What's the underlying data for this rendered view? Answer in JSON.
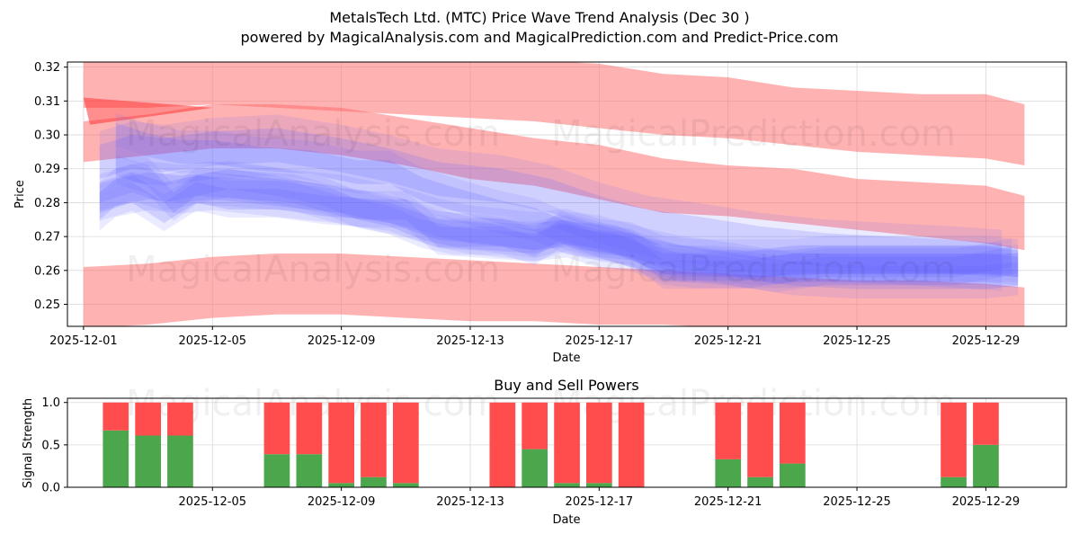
{
  "chart_data": [
    {
      "type": "area",
      "title": "MetalsTech Ltd. (MTC) Price Wave Trend Analysis (Dec 30 )",
      "subtitle": "powered by MagicalAnalysis.com and MagicalPrediction.com and Predict-Price.com",
      "xlabel": "Date",
      "ylabel": "Price",
      "ylim": [
        0.2435,
        0.3215
      ],
      "xlim": [
        "2025-11-30.5",
        "2025-12-31.5"
      ],
      "xtick_labels": [
        "2025-12-01",
        "2025-12-05",
        "2025-12-09",
        "2025-12-13",
        "2025-12-17",
        "2025-12-21",
        "2025-12-25",
        "2025-12-29"
      ],
      "ytick_labels": [
        "0.25",
        "0.26",
        "0.27",
        "0.28",
        "0.29",
        "0.30",
        "0.31",
        "0.32"
      ],
      "grid": true,
      "red_bands": [
        {
          "name": "upper band 1",
          "x": [
            1,
            3,
            5,
            7,
            9,
            11,
            13,
            15,
            17,
            19,
            21,
            23,
            25,
            27,
            29,
            30.2
          ],
          "lower": [
            0.308,
            0.308,
            0.309,
            0.308,
            0.307,
            0.306,
            0.305,
            0.304,
            0.302,
            0.3,
            0.299,
            0.297,
            0.295,
            0.294,
            0.293,
            0.291
          ],
          "upper": [
            0.322,
            0.322,
            0.323,
            0.324,
            0.324,
            0.323,
            0.322,
            0.322,
            0.321,
            0.318,
            0.317,
            0.314,
            0.313,
            0.312,
            0.312,
            0.309
          ]
        },
        {
          "name": "upper band 2",
          "x": [
            1,
            3,
            5,
            7,
            9,
            11,
            13,
            15,
            17,
            19,
            21,
            23,
            25,
            27,
            29,
            30.2
          ],
          "lower": [
            0.292,
            0.294,
            0.296,
            0.296,
            0.294,
            0.291,
            0.287,
            0.285,
            0.281,
            0.277,
            0.276,
            0.274,
            0.272,
            0.27,
            0.268,
            0.266
          ],
          "upper": [
            0.304,
            0.306,
            0.309,
            0.309,
            0.308,
            0.305,
            0.302,
            0.299,
            0.297,
            0.293,
            0.291,
            0.29,
            0.287,
            0.286,
            0.285,
            0.282
          ]
        },
        {
          "name": "lower band",
          "x": [
            1,
            3,
            5,
            7,
            9,
            11,
            13,
            15,
            17,
            19,
            21,
            23,
            25,
            27,
            29,
            30.2
          ],
          "lower": [
            0.243,
            0.244,
            0.246,
            0.247,
            0.247,
            0.246,
            0.245,
            0.245,
            0.244,
            0.244,
            0.243,
            0.243,
            0.243,
            0.243,
            0.243,
            0.243
          ],
          "upper": [
            0.261,
            0.262,
            0.264,
            0.265,
            0.265,
            0.264,
            0.263,
            0.262,
            0.261,
            0.26,
            0.259,
            0.258,
            0.257,
            0.257,
            0.256,
            0.255
          ]
        }
      ],
      "red_wedge": {
        "x": [
          1,
          1.2,
          5
        ],
        "y_top": [
          0.311,
          0.311,
          0.308
        ],
        "y_bottom": [
          0.311,
          0.303,
          0.308
        ]
      },
      "wave_bands": [
        {
          "x": [
            1.5,
            2.5,
            3.5,
            5,
            7,
            9,
            10.5,
            12,
            14,
            15.5,
            17,
            18.5,
            20,
            22,
            24,
            26,
            28,
            29.5
          ],
          "center": [
            0.292,
            0.295,
            0.294,
            0.296,
            0.297,
            0.294,
            0.291,
            0.287,
            0.285,
            0.282,
            0.277,
            0.273,
            0.271,
            0.268,
            0.266,
            0.265,
            0.264,
            0.263
          ],
          "half": 0.005
        },
        {
          "x": [
            1.5,
            2,
            3,
            4,
            5,
            6,
            7,
            8,
            9,
            10,
            11,
            12,
            13,
            14,
            15,
            16,
            17,
            18,
            19,
            20,
            21,
            22,
            23,
            24,
            25,
            26,
            27,
            28,
            29,
            30
          ],
          "center": [
            0.279,
            0.283,
            0.285,
            0.284,
            0.285,
            0.284,
            0.283,
            0.282,
            0.281,
            0.279,
            0.277,
            0.274,
            0.272,
            0.271,
            0.27,
            0.271,
            0.268,
            0.267,
            0.263,
            0.262,
            0.262,
            0.262,
            0.262,
            0.263,
            0.263,
            0.263,
            0.263,
            0.263,
            0.263,
            0.262
          ],
          "half": 0.004
        },
        {
          "x": [
            1.5,
            2.5,
            3.5,
            4.5,
            6,
            7.5,
            9,
            10.5,
            12,
            13.5,
            15,
            15.8,
            16.5,
            17.5,
            19,
            20.5,
            22,
            23.5,
            25,
            27,
            29,
            30
          ],
          "center": [
            0.283,
            0.286,
            0.283,
            0.285,
            0.284,
            0.283,
            0.279,
            0.277,
            0.272,
            0.271,
            0.269,
            0.271,
            0.269,
            0.268,
            0.262,
            0.262,
            0.261,
            0.262,
            0.262,
            0.262,
            0.262,
            0.261
          ],
          "half": 0.003
        },
        {
          "x": [
            2,
            3,
            3.8,
            4.5,
            5.5,
            7,
            8.5,
            9.5,
            10.5,
            11.5,
            12.5,
            14,
            15,
            15.8,
            17,
            18.5,
            19.5,
            21,
            22.5,
            24,
            26,
            28,
            29.8
          ],
          "center": [
            0.291,
            0.288,
            0.28,
            0.285,
            0.287,
            0.285,
            0.282,
            0.278,
            0.276,
            0.272,
            0.27,
            0.27,
            0.267,
            0.272,
            0.269,
            0.265,
            0.262,
            0.261,
            0.259,
            0.261,
            0.261,
            0.261,
            0.264
          ],
          "half": 0.003
        },
        {
          "x": [
            2,
            3,
            4,
            5,
            6.5,
            8,
            9.5,
            10.5,
            11.5,
            12.5,
            14,
            15,
            16,
            17,
            18.5,
            19.5,
            21,
            23,
            25,
            27,
            29,
            30
          ],
          "center": [
            0.3,
            0.297,
            0.295,
            0.295,
            0.293,
            0.292,
            0.289,
            0.289,
            0.284,
            0.281,
            0.277,
            0.275,
            0.271,
            0.27,
            0.266,
            0.264,
            0.262,
            0.259,
            0.258,
            0.258,
            0.258,
            0.259
          ],
          "half": 0.0035
        },
        {
          "x": [
            1.5,
            2.5,
            3.5,
            4.5,
            5.5,
            7,
            8.5,
            10,
            11,
            12,
            13.5,
            15,
            16,
            17,
            18,
            19,
            20,
            21.5,
            23,
            25,
            27,
            29,
            30
          ],
          "center": [
            0.28,
            0.283,
            0.277,
            0.283,
            0.281,
            0.281,
            0.279,
            0.278,
            0.278,
            0.27,
            0.269,
            0.268,
            0.271,
            0.268,
            0.267,
            0.26,
            0.26,
            0.26,
            0.262,
            0.262,
            0.262,
            0.262,
            0.262
          ],
          "half": 0.003
        }
      ]
    },
    {
      "type": "bar",
      "title": "Buy and Sell Powers",
      "xlabel": "Date",
      "ylabel": "Signal Strength",
      "ylim": [
        0,
        1.05
      ],
      "xlim": [
        "2025-11-30.5",
        "2025-12-31.5"
      ],
      "xtick_labels": [
        "2025-12-05",
        "2025-12-09",
        "2025-12-13",
        "2025-12-17",
        "2025-12-21",
        "2025-12-25",
        "2025-12-29"
      ],
      "ytick_labels": [
        "0.0",
        "0.5",
        "1.0"
      ],
      "categories": [
        "2025-12-02",
        "2025-12-03",
        "2025-12-04",
        "2025-12-07",
        "2025-12-08",
        "2025-12-09",
        "2025-12-10",
        "2025-12-11",
        "2025-12-14",
        "2025-12-15",
        "2025-12-16",
        "2025-12-17",
        "2025-12-18",
        "2025-12-21",
        "2025-12-22",
        "2025-12-23",
        "2025-12-28",
        "2025-12-29"
      ],
      "series": [
        {
          "name": "Buy",
          "color": "#4ca64c",
          "values": [
            0.67,
            0.61,
            0.61,
            0.39,
            0.39,
            0.05,
            0.12,
            0.05,
            0.0,
            0.45,
            0.05,
            0.05,
            0.0,
            0.33,
            0.12,
            0.28,
            0.12,
            0.5
          ]
        },
        {
          "name": "Sell",
          "color": "#ff4c4c",
          "values": [
            0.33,
            0.39,
            0.39,
            0.61,
            0.61,
            0.95,
            0.88,
            0.95,
            1.0,
            0.55,
            0.95,
            0.95,
            1.0,
            0.67,
            0.88,
            0.72,
            0.88,
            0.5
          ]
        }
      ]
    }
  ],
  "colors": {
    "red_band": "#ff6666",
    "wave": "#6666ff",
    "buy": "#4ca64c",
    "sell": "#ff4c4c",
    "grid": "#d9d9d9"
  },
  "watermarks": {
    "left": "MagicalAnalysis.com",
    "right": "MagicalPrediction.com"
  }
}
